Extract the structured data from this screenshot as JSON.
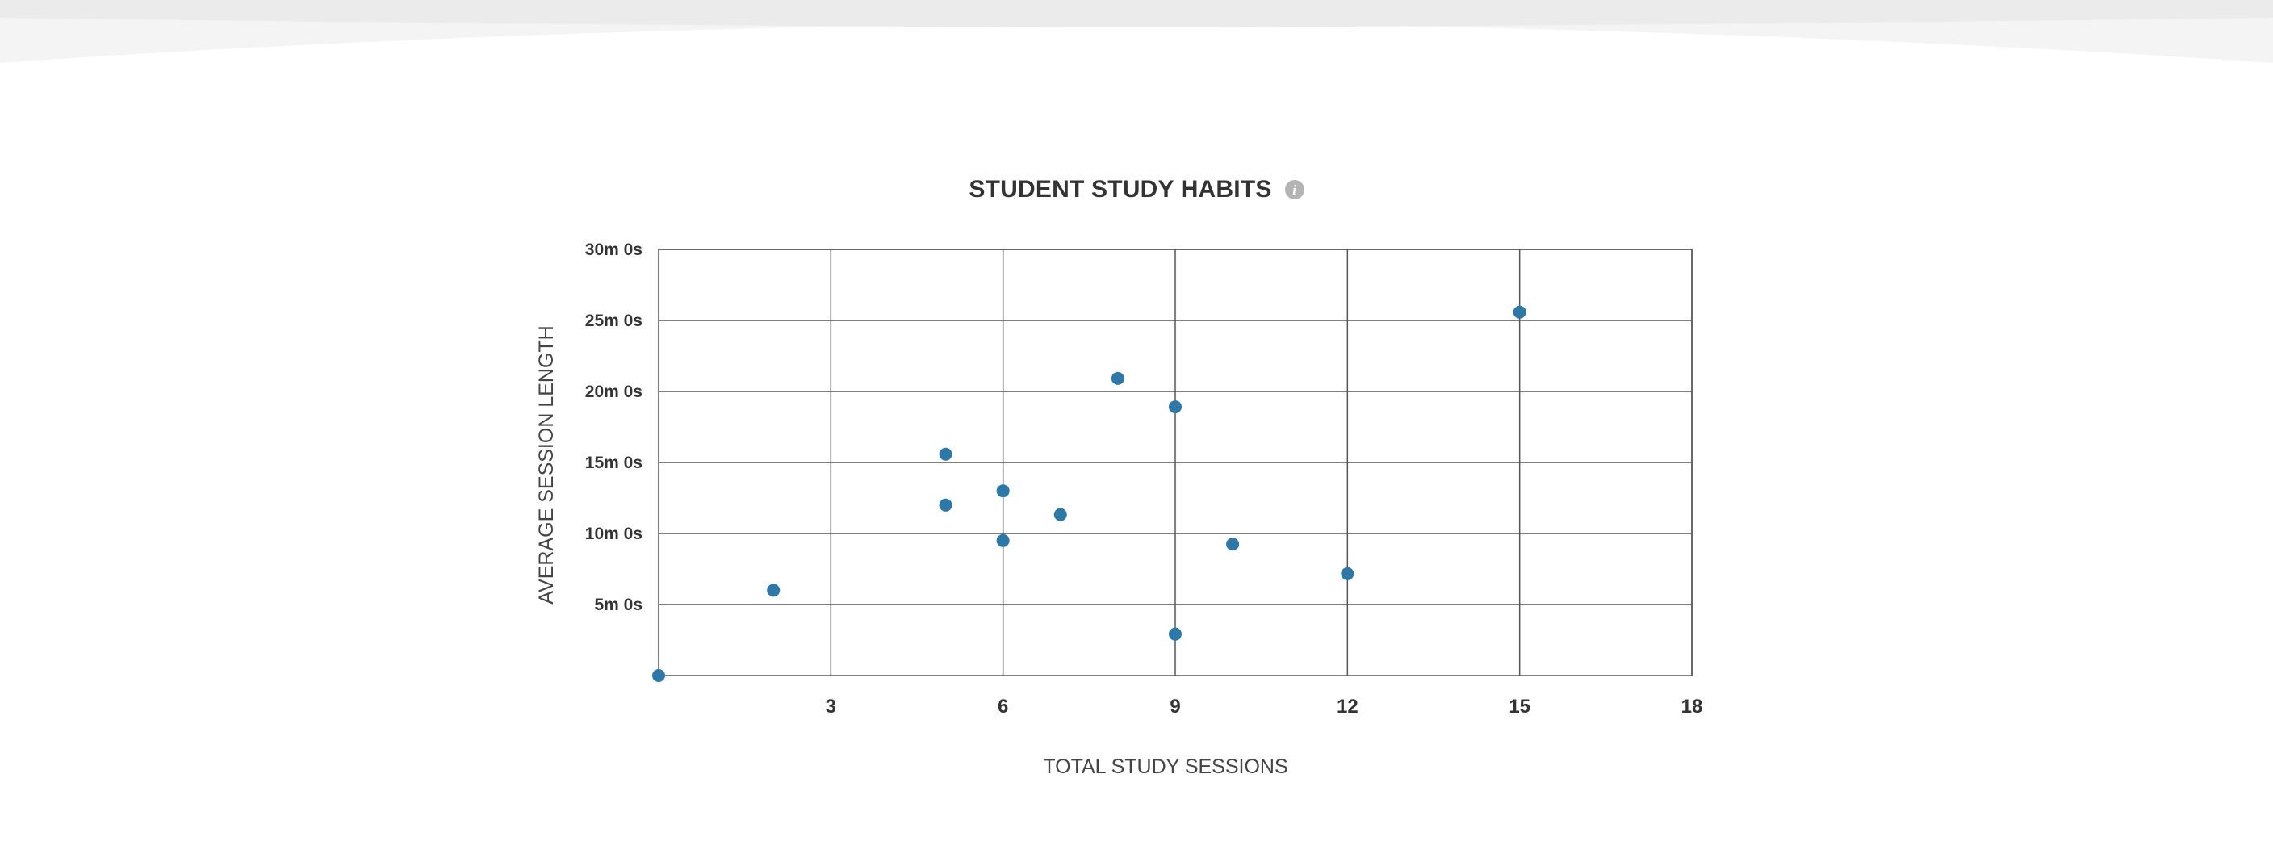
{
  "chart_data": {
    "type": "scatter",
    "title": "STUDENT STUDY HABITS",
    "xlabel": "TOTAL STUDY SESSIONS",
    "ylabel": "AVERAGE SESSION LENGTH",
    "x_unit": "sessions",
    "y_unit": "seconds",
    "xlim": [
      0,
      18
    ],
    "ylim": [
      0,
      1800
    ],
    "x_ticks": [
      3,
      6,
      9,
      12,
      15,
      18
    ],
    "x_tick_labels": [
      "3",
      "6",
      "9",
      "12",
      "15",
      "18"
    ],
    "y_ticks": [
      300,
      600,
      900,
      1200,
      1500,
      1800
    ],
    "y_tick_labels": [
      "5m 0s",
      "10m 0s",
      "15m 0s",
      "20m 0s",
      "25m 0s",
      "30m 0s"
    ],
    "grid": true,
    "legend": "none",
    "marker_color": "#2e78a8",
    "points": [
      {
        "x": 0,
        "y": 0
      },
      {
        "x": 2,
        "y": 360
      },
      {
        "x": 5,
        "y": 935
      },
      {
        "x": 5,
        "y": 720
      },
      {
        "x": 6,
        "y": 780
      },
      {
        "x": 6,
        "y": 570
      },
      {
        "x": 7,
        "y": 680
      },
      {
        "x": 8,
        "y": 1255
      },
      {
        "x": 9,
        "y": 1135
      },
      {
        "x": 9,
        "y": 175
      },
      {
        "x": 10,
        "y": 555
      },
      {
        "x": 12,
        "y": 430
      },
      {
        "x": 15,
        "y": 1535
      }
    ]
  },
  "colors": {
    "grid": "#555555",
    "marker": "#2e78a8",
    "title": "#333333",
    "info_icon": "#b4b4b4",
    "wave": "#ebebeb"
  },
  "icons": {
    "info": "info-icon"
  },
  "info_glyph": "i"
}
